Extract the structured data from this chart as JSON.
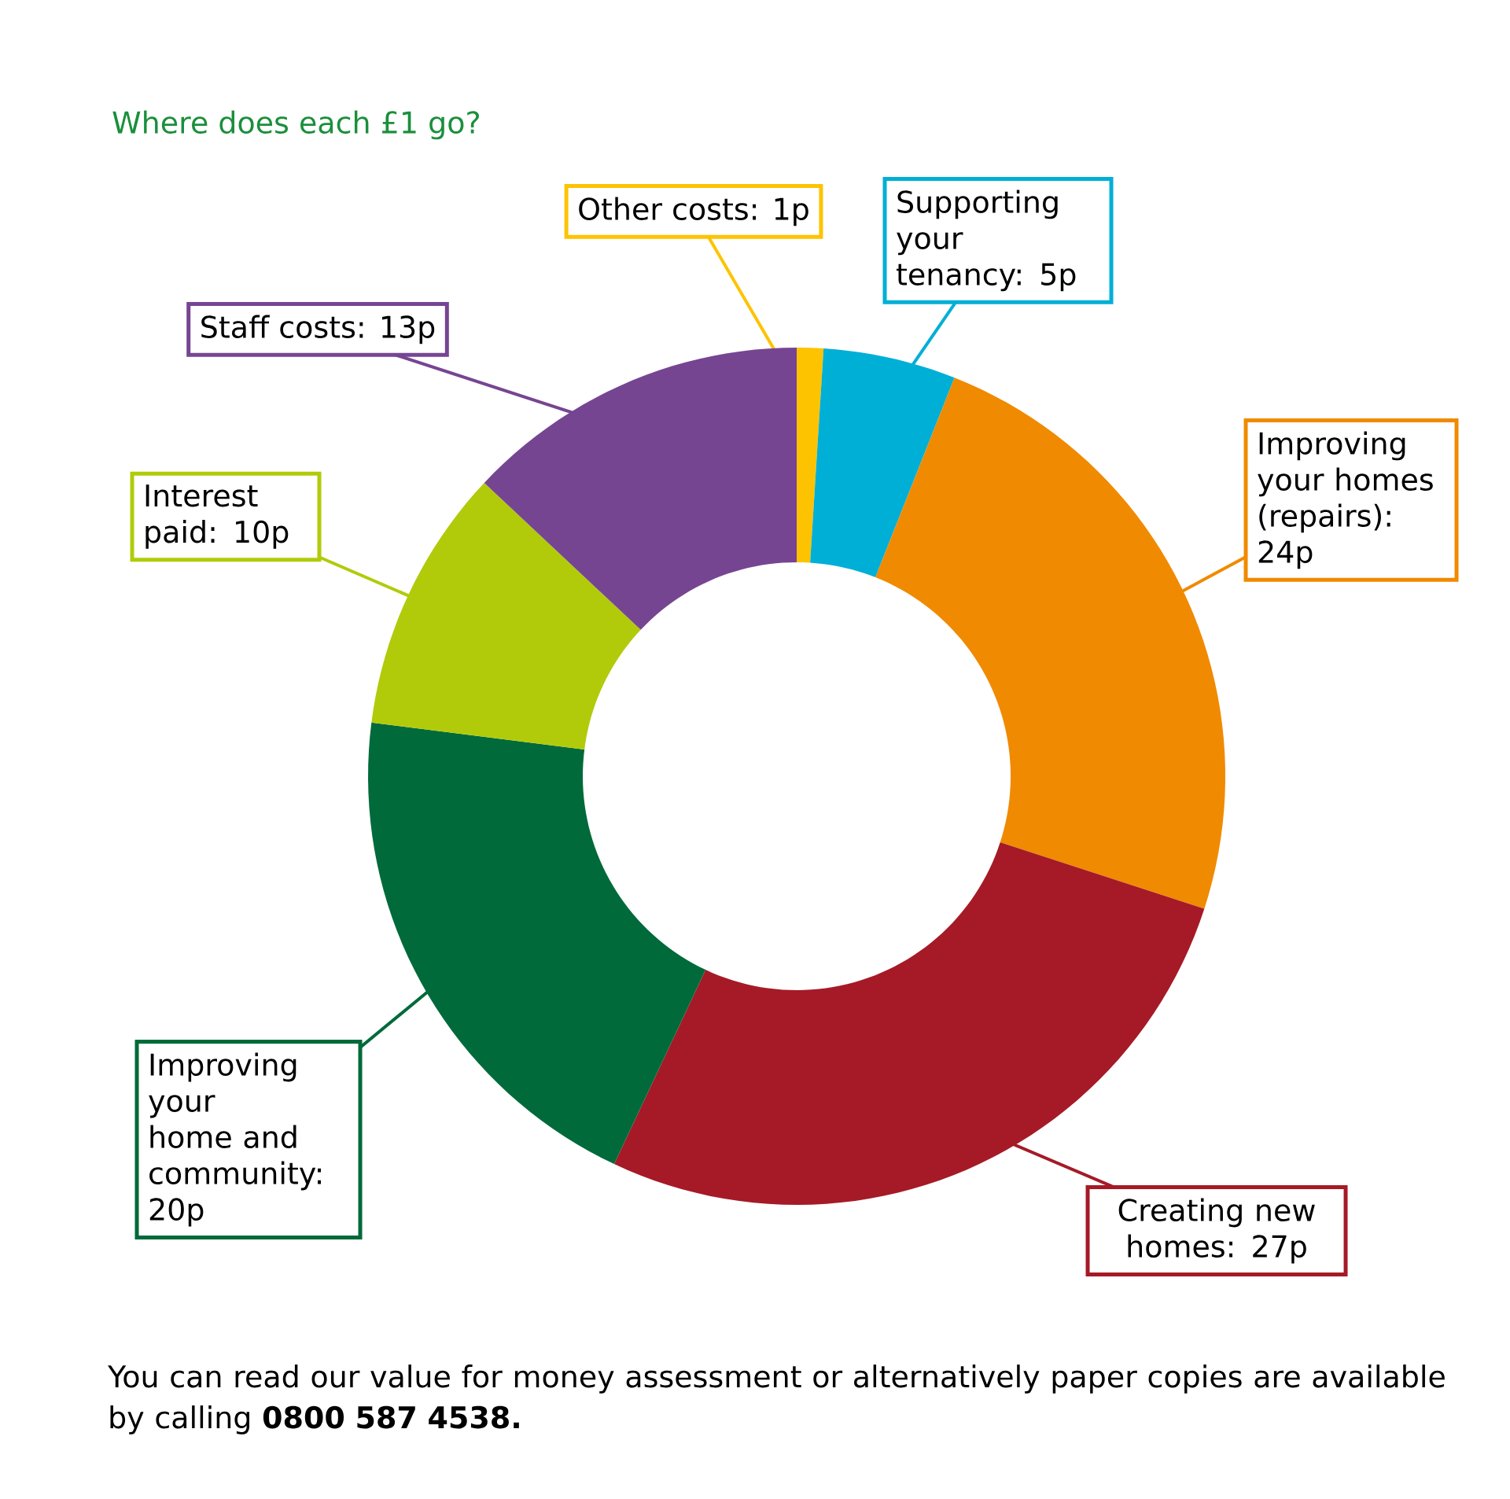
{
  "chart_data": {
    "type": "donut",
    "title": "Where does each £1 go?",
    "categories": [
      "Other costs: 1p",
      "Supporting your tenancy: 5p",
      "Improving your homes (repairs): 24p",
      "Creating new homes: 27p",
      "Improving your home and community: 20p",
      "Interest paid: 10p",
      "Staff costs: 13p"
    ],
    "values": [
      1,
      5,
      24,
      27,
      20,
      10,
      13
    ],
    "colors": [
      "#fdc300",
      "#00afd6",
      "#f08a00",
      "#a51a26",
      "#006a3a",
      "#b1cb0a",
      "#764592"
    ],
    "annotations": [
      "You can read our value for money assessment or alternatively paper copies are available by calling **0800 587 4538.**"
    ]
  }
}
